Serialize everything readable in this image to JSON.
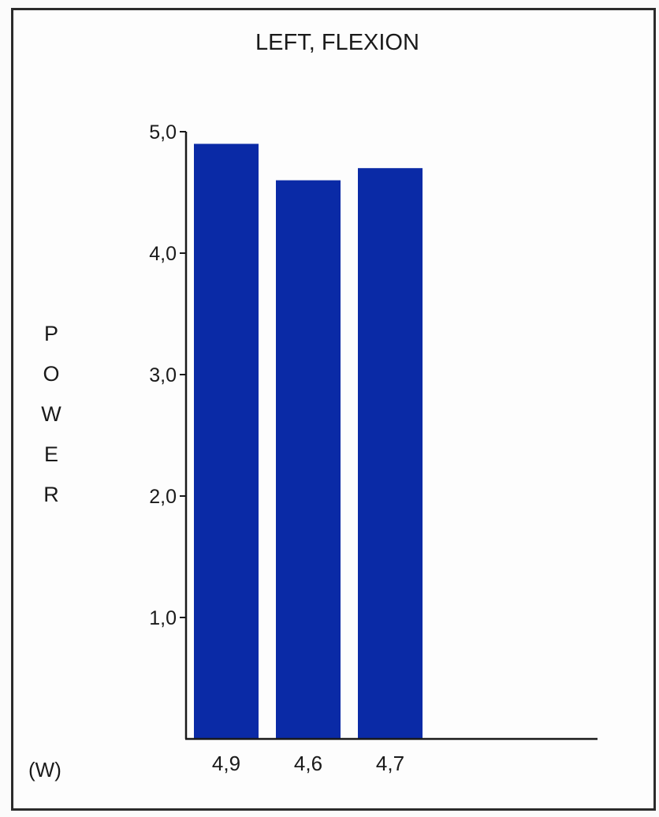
{
  "chart_data": {
    "type": "bar",
    "title": "LEFT, FLEXION",
    "ylabel": "POWER",
    "unit_label": "(W)",
    "categories": [
      "4,9",
      "4,6",
      "4,7"
    ],
    "values": [
      4.9,
      4.6,
      4.7
    ],
    "ylim": [
      0,
      5.0
    ],
    "yticks": [
      {
        "value": 1.0,
        "label": "1,0"
      },
      {
        "value": 2.0,
        "label": "2,0"
      },
      {
        "value": 3.0,
        "label": "3,0"
      },
      {
        "value": 4.0,
        "label": "4,0"
      },
      {
        "value": 5.0,
        "label": "5,0"
      }
    ],
    "grid": false,
    "bar_color": "#0a2aa6",
    "axis_color": "#1a1a1a"
  }
}
